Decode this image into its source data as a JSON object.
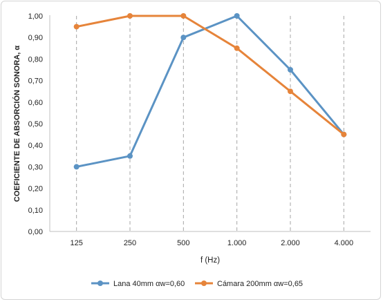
{
  "chart_data": {
    "type": "line",
    "title": "",
    "xlabel": "f (Hz)",
    "ylabel": "COEFICIENTE DE ABSORCIÓN SONORA, α",
    "categories": [
      "125",
      "250",
      "500",
      "1.000",
      "2.000",
      "4.000"
    ],
    "ylim": [
      0,
      1
    ],
    "yticks": [
      "0,00",
      "0,10",
      "0,20",
      "0,30",
      "0,40",
      "0,50",
      "0,60",
      "0,70",
      "0,80",
      "0,90",
      "1,00"
    ],
    "grid": "vertical dashed at categories",
    "legend_position": "bottom",
    "series": [
      {
        "name": "Lana 40mm αw=0,60",
        "color": "#5b93c4",
        "values": [
          0.3,
          0.35,
          0.9,
          1.0,
          0.75,
          0.45
        ]
      },
      {
        "name": "Cámara 200mm αw=0,65",
        "color": "#e6843a",
        "values": [
          0.95,
          1.0,
          1.0,
          0.85,
          0.65,
          0.45
        ]
      }
    ]
  }
}
